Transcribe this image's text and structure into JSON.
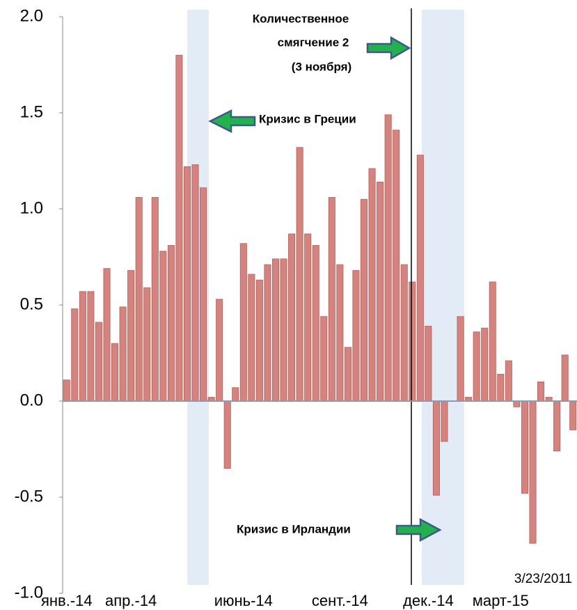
{
  "chart_data": {
    "type": "bar",
    "categories": [
      "янв.-14",
      null,
      null,
      null,
      null,
      null,
      null,
      null,
      "апр.-14",
      null,
      null,
      null,
      null,
      null,
      null,
      null,
      null,
      null,
      null,
      null,
      null,
      null,
      "июнь-14",
      null,
      null,
      null,
      null,
      null,
      null,
      null,
      null,
      null,
      null,
      null,
      "сент.-14",
      null,
      null,
      null,
      null,
      null,
      null,
      null,
      null,
      null,
      null,
      "дек.-14",
      null,
      null,
      null,
      null,
      null,
      null,
      null,
      null,
      "март-15",
      null,
      null,
      null,
      null,
      null,
      null,
      null,
      null,
      null
    ],
    "values": [
      0.11,
      0.48,
      0.57,
      0.57,
      0.41,
      0.69,
      0.3,
      0.49,
      0.68,
      1.06,
      0.59,
      1.06,
      0.78,
      0.81,
      1.8,
      1.22,
      1.23,
      1.11,
      0.02,
      0.53,
      -0.35,
      0.07,
      0.82,
      0.66,
      0.63,
      0.71,
      0.74,
      0.74,
      0.87,
      1.32,
      0.87,
      0.81,
      0.44,
      1.06,
      0.71,
      0.28,
      0.68,
      1.05,
      1.21,
      1.14,
      1.49,
      1.41,
      0.71,
      0.62,
      1.28,
      0.39,
      -0.49,
      -0.21,
      0.0,
      0.44,
      0.02,
      0.36,
      0.38,
      0.62,
      0.14,
      0.21,
      -0.03,
      -0.48,
      -0.74,
      0.1,
      0.02,
      -0.26,
      0.24,
      -0.15
    ],
    "color": "#d4837f",
    "ylim": [
      -1,
      2
    ],
    "yticks": [
      {
        "value": -1,
        "label": "-1.0"
      },
      -0.5,
      {
        "value": 0,
        "label": "0.0"
      },
      0.5,
      {
        "value": 1,
        "label": "1.0"
      },
      1.5,
      {
        "value": 2,
        "label": "2.0"
      }
    ],
    "annotations": [
      "Количественное",
      "смягчение 2",
      "(3 ноября)",
      "Кризис в Греции",
      "Кризис в Ирландии"
    ],
    "date_note": "3/23/2011"
  }
}
